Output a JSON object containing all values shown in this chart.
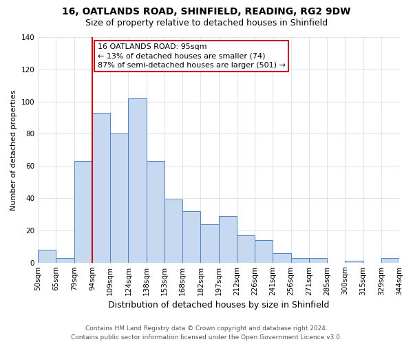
{
  "title": "16, OATLANDS ROAD, SHINFIELD, READING, RG2 9DW",
  "subtitle": "Size of property relative to detached houses in Shinfield",
  "xlabel": "Distribution of detached houses by size in Shinfield",
  "ylabel": "Number of detached properties",
  "bin_labels": [
    "50sqm",
    "65sqm",
    "79sqm",
    "94sqm",
    "109sqm",
    "124sqm",
    "138sqm",
    "153sqm",
    "168sqm",
    "182sqm",
    "197sqm",
    "212sqm",
    "226sqm",
    "241sqm",
    "256sqm",
    "271sqm",
    "285sqm",
    "300sqm",
    "315sqm",
    "329sqm",
    "344sqm"
  ],
  "bar_values": [
    8,
    3,
    63,
    93,
    80,
    102,
    63,
    39,
    32,
    24,
    29,
    17,
    14,
    6,
    3,
    3,
    0,
    1,
    0,
    3
  ],
  "bar_color": "#c6d9f0",
  "bar_edge_color": "#4f81bd",
  "vline_x_index": 3,
  "vline_color": "#cc0000",
  "ylim": [
    0,
    140
  ],
  "yticks": [
    0,
    20,
    40,
    60,
    80,
    100,
    120,
    140
  ],
  "annotation_text": "16 OATLANDS ROAD: 95sqm\n← 13% of detached houses are smaller (74)\n87% of semi-detached houses are larger (501) →",
  "annotation_box_color": "#ffffff",
  "annotation_box_edge": "#cc0000",
  "footer_line1": "Contains HM Land Registry data © Crown copyright and database right 2024.",
  "footer_line2": "Contains public sector information licensed under the Open Government Licence v3.0.",
  "background_color": "#ffffff",
  "grid_color": "#dce6f1",
  "title_fontsize": 10,
  "subtitle_fontsize": 9,
  "xlabel_fontsize": 9,
  "ylabel_fontsize": 8,
  "tick_fontsize": 7.5,
  "footer_fontsize": 6.5
}
